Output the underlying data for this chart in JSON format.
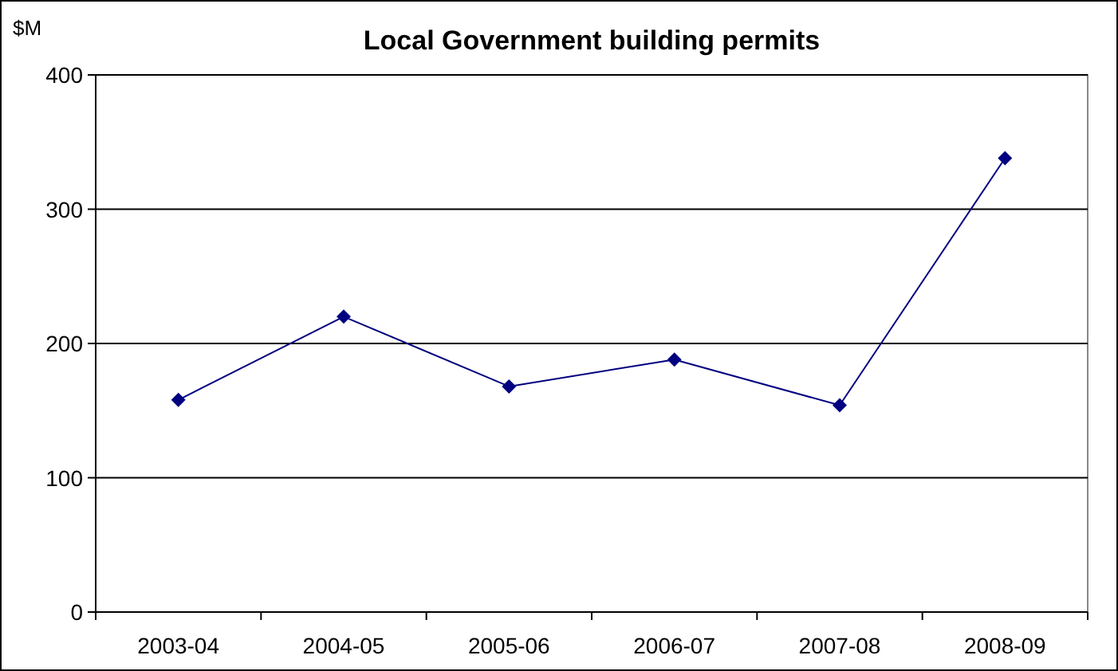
{
  "chart_data": {
    "type": "line",
    "title": "Local Government building permits",
    "ylabel": "$M",
    "categories": [
      "2003-04",
      "2004-05",
      "2005-06",
      "2006-07",
      "2007-08",
      "2008-09"
    ],
    "series": [
      {
        "color": "#000080",
        "values": [
          158,
          220,
          168,
          188,
          154,
          338
        ]
      }
    ],
    "ylim": [
      0,
      400
    ],
    "yticks": [
      0,
      100,
      200,
      300,
      400
    ],
    "grid": "y",
    "marker": "diamond",
    "line_style": "solid"
  }
}
